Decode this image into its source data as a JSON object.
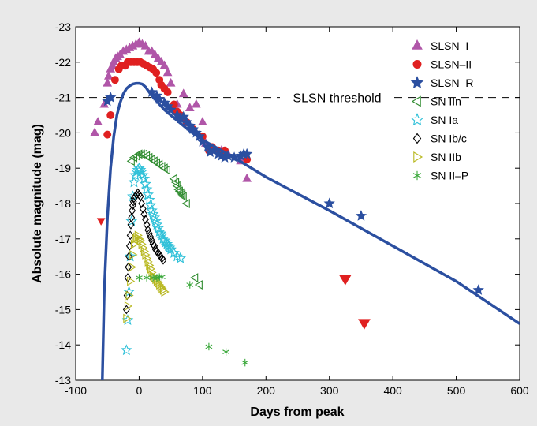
{
  "chart_data": {
    "type": "scatter",
    "xlabel": "Days from peak",
    "ylabel": "Absolute magnitude (mag)",
    "xlim": [
      -100,
      600
    ],
    "ylim": [
      -23,
      -13
    ],
    "y_reversed": true,
    "xticks": [
      -100,
      0,
      100,
      200,
      300,
      400,
      500,
      600
    ],
    "yticks": [
      -23,
      -22,
      -21,
      -20,
      -19,
      -18,
      -17,
      -16,
      -15,
      -14,
      -13
    ],
    "legend_position": "top-right",
    "threshold": {
      "label": "SLSN threshold",
      "y": -21
    },
    "model_curve": {
      "color": "#2b4fa0",
      "points": [
        [
          -58,
          -13
        ],
        [
          -55,
          -15.5
        ],
        [
          -50,
          -17.6
        ],
        [
          -45,
          -19.0
        ],
        [
          -40,
          -19.9
        ],
        [
          -35,
          -20.5
        ],
        [
          -30,
          -20.85
        ],
        [
          -25,
          -21.1
        ],
        [
          -20,
          -21.25
        ],
        [
          -15,
          -21.33
        ],
        [
          -10,
          -21.38
        ],
        [
          -5,
          -21.4
        ],
        [
          0,
          -21.4
        ],
        [
          5,
          -21.38
        ],
        [
          10,
          -21.3
        ],
        [
          20,
          -21.05
        ],
        [
          30,
          -20.85
        ],
        [
          40,
          -20.65
        ],
        [
          60,
          -20.35
        ],
        [
          80,
          -20.05
        ],
        [
          100,
          -19.8
        ],
        [
          130,
          -19.5
        ],
        [
          150,
          -19.3
        ],
        [
          200,
          -18.75
        ],
        [
          300,
          -17.8
        ],
        [
          400,
          -16.8
        ],
        [
          500,
          -15.8
        ],
        [
          600,
          -14.6
        ]
      ]
    },
    "series": [
      {
        "name": "SLSN–I",
        "marker": "triangle-up",
        "color": "#b056a8",
        "filled": true,
        "points": [
          [
            -70,
            -20
          ],
          [
            -65,
            -20.3
          ],
          [
            -55,
            -20.8
          ],
          [
            -50,
            -21.4
          ],
          [
            -48,
            -21.6
          ],
          [
            -45,
            -21.8
          ],
          [
            -42,
            -21.9
          ],
          [
            -40,
            -22.0
          ],
          [
            -37,
            -22.1
          ],
          [
            -34,
            -22.15
          ],
          [
            -30,
            -22.2
          ],
          [
            -25,
            -22.3
          ],
          [
            -20,
            -22.35
          ],
          [
            -15,
            -22.4
          ],
          [
            -10,
            -22.45
          ],
          [
            -5,
            -22.5
          ],
          [
            0,
            -22.55
          ],
          [
            5,
            -22.5
          ],
          [
            10,
            -22.45
          ],
          [
            15,
            -22.3
          ],
          [
            20,
            -22.3
          ],
          [
            25,
            -22.2
          ],
          [
            30,
            -22.1
          ],
          [
            35,
            -22.0
          ],
          [
            40,
            -21.9
          ],
          [
            45,
            -21.7
          ],
          [
            50,
            -21.4
          ],
          [
            60,
            -20.8
          ],
          [
            70,
            -21.1
          ],
          [
            80,
            -20.7
          ],
          [
            90,
            -20.8
          ],
          [
            100,
            -20.3
          ],
          [
            105,
            -19.7
          ],
          [
            115,
            -19.5
          ],
          [
            130,
            -19.5
          ],
          [
            140,
            -19.4
          ],
          [
            160,
            -19.2
          ],
          [
            170,
            -18.7
          ]
        ]
      },
      {
        "name": "SLSN–II",
        "marker": "circle",
        "color": "#e02020",
        "filled": true,
        "points": [
          [
            -50,
            -19.95
          ],
          [
            -45,
            -20.5
          ],
          [
            -38,
            -21.5
          ],
          [
            -32,
            -21.8
          ],
          [
            -28,
            -21.9
          ],
          [
            -22,
            -21.9
          ],
          [
            -18,
            -22.0
          ],
          [
            -13,
            -22.0
          ],
          [
            -8,
            -22.0
          ],
          [
            -3,
            -22.0
          ],
          [
            2,
            -22.0
          ],
          [
            7,
            -21.95
          ],
          [
            12,
            -21.9
          ],
          [
            17,
            -21.85
          ],
          [
            22,
            -21.8
          ],
          [
            27,
            -21.7
          ],
          [
            32,
            -21.5
          ],
          [
            35,
            -21.35
          ],
          [
            40,
            -21.25
          ],
          [
            45,
            -21.15
          ],
          [
            55,
            -20.8
          ],
          [
            60,
            -20.6
          ],
          [
            65,
            -20.5
          ],
          [
            70,
            -20.4
          ],
          [
            75,
            -20.3
          ],
          [
            85,
            -20.1
          ],
          [
            100,
            -19.9
          ],
          [
            110,
            -19.5
          ],
          [
            115,
            -19.6
          ],
          [
            125,
            -19.5
          ],
          [
            135,
            -19.5
          ],
          [
            170,
            -19.25
          ]
        ],
        "extra_points": [
          [
            -60,
            -17.5,
            "triangle-down-small"
          ],
          [
            325,
            -15.85,
            "triangle-down"
          ],
          [
            355,
            -14.6,
            "triangle-down"
          ]
        ]
      },
      {
        "name": "SLSN–R",
        "marker": "star",
        "color": "#2b4fa0",
        "filled": true,
        "points": [
          [
            -50,
            -20.9
          ],
          [
            -45,
            -21.0
          ],
          [
            20,
            -21.15
          ],
          [
            28,
            -21.05
          ],
          [
            32,
            -20.95
          ],
          [
            40,
            -20.85
          ],
          [
            45,
            -20.75
          ],
          [
            50,
            -20.65
          ],
          [
            60,
            -20.5
          ],
          [
            65,
            -20.4
          ],
          [
            70,
            -20.45
          ],
          [
            75,
            -20.3
          ],
          [
            80,
            -20.2
          ],
          [
            85,
            -20.1
          ],
          [
            90,
            -20.0
          ],
          [
            95,
            -19.9
          ],
          [
            100,
            -19.75
          ],
          [
            108,
            -19.6
          ],
          [
            112,
            -19.45
          ],
          [
            118,
            -19.5
          ],
          [
            125,
            -19.4
          ],
          [
            130,
            -19.35
          ],
          [
            135,
            -19.3
          ],
          [
            140,
            -19.35
          ],
          [
            150,
            -19.3
          ],
          [
            160,
            -19.35
          ],
          [
            165,
            -19.4
          ],
          [
            170,
            -19.4
          ],
          [
            300,
            -18.0
          ],
          [
            350,
            -17.65
          ],
          [
            535,
            -15.55
          ]
        ]
      },
      {
        "name": "SN IIn",
        "marker": "triangle-left",
        "color": "#2e8b2e",
        "filled": false,
        "points": [
          [
            -12,
            -19.2
          ],
          [
            -8,
            -19.3
          ],
          [
            -4,
            -19.35
          ],
          [
            0,
            -19.4
          ],
          [
            4,
            -19.4
          ],
          [
            8,
            -19.4
          ],
          [
            12,
            -19.35
          ],
          [
            16,
            -19.3
          ],
          [
            20,
            -19.25
          ],
          [
            24,
            -19.2
          ],
          [
            28,
            -19.15
          ],
          [
            32,
            -19.1
          ],
          [
            36,
            -19.05
          ],
          [
            40,
            -19.0
          ],
          [
            44,
            -18.95
          ],
          [
            55,
            -18.7
          ],
          [
            58,
            -18.6
          ],
          [
            60,
            -18.5
          ],
          [
            62,
            -18.4
          ],
          [
            64,
            -18.35
          ],
          [
            66,
            -18.3
          ],
          [
            68,
            -18.25
          ],
          [
            70,
            -18.2
          ],
          [
            75,
            -18.0
          ],
          [
            88,
            -15.9
          ],
          [
            95,
            -15.7
          ]
        ]
      },
      {
        "name": "SN Ia",
        "marker": "star-outline",
        "color": "#2ec0d8",
        "filled": false,
        "points": [
          [
            -20,
            -13.85
          ],
          [
            -18,
            -14.7
          ],
          [
            -16,
            -15.5
          ],
          [
            -14,
            -16.5
          ],
          [
            -12,
            -17.5
          ],
          [
            -10,
            -18.2
          ],
          [
            -8,
            -18.6
          ],
          [
            -6,
            -18.8
          ],
          [
            -4,
            -18.9
          ],
          [
            -2,
            -18.95
          ],
          [
            0,
            -19.0
          ],
          [
            2,
            -18.95
          ],
          [
            4,
            -18.9
          ],
          [
            6,
            -18.8
          ],
          [
            8,
            -18.7
          ],
          [
            10,
            -18.55
          ],
          [
            12,
            -18.4
          ],
          [
            14,
            -18.25
          ],
          [
            16,
            -18.1
          ],
          [
            18,
            -17.95
          ],
          [
            20,
            -17.8
          ],
          [
            22,
            -17.7
          ],
          [
            24,
            -17.6
          ],
          [
            26,
            -17.5
          ],
          [
            28,
            -17.4
          ],
          [
            30,
            -17.3
          ],
          [
            32,
            -17.2
          ],
          [
            34,
            -17.15
          ],
          [
            36,
            -17.1
          ],
          [
            38,
            -17.0
          ],
          [
            40,
            -16.95
          ],
          [
            42,
            -16.9
          ],
          [
            44,
            -16.85
          ],
          [
            46,
            -16.8
          ],
          [
            48,
            -16.75
          ],
          [
            50,
            -16.7
          ],
          [
            55,
            -16.6
          ],
          [
            60,
            -16.5
          ],
          [
            65,
            -16.45
          ]
        ]
      },
      {
        "name": "SN Ib/c",
        "marker": "diamond",
        "color": "#000000",
        "filled": false,
        "points": [
          [
            -20,
            -15.0
          ],
          [
            -19,
            -15.4
          ],
          [
            -18,
            -15.9
          ],
          [
            -17,
            -16.2
          ],
          [
            -16,
            -16.5
          ],
          [
            -15,
            -16.8
          ],
          [
            -14,
            -17.1
          ],
          [
            -13,
            -17.4
          ],
          [
            -12,
            -17.6
          ],
          [
            -11,
            -17.8
          ],
          [
            -10,
            -17.95
          ],
          [
            -9,
            -18.05
          ],
          [
            -8,
            -18.15
          ],
          [
            -6,
            -18.2
          ],
          [
            -4,
            -18.25
          ],
          [
            -2,
            -18.3
          ],
          [
            0,
            -18.25
          ],
          [
            2,
            -18.2
          ],
          [
            4,
            -18.0
          ],
          [
            6,
            -17.85
          ],
          [
            8,
            -17.7
          ],
          [
            10,
            -17.55
          ],
          [
            12,
            -17.4
          ],
          [
            14,
            -17.25
          ],
          [
            16,
            -17.15
          ],
          [
            18,
            -17.05
          ],
          [
            20,
            -16.95
          ],
          [
            22,
            -16.85
          ],
          [
            24,
            -16.8
          ],
          [
            26,
            -16.7
          ],
          [
            28,
            -16.65
          ],
          [
            30,
            -16.6
          ],
          [
            32,
            -16.55
          ],
          [
            34,
            -16.5
          ],
          [
            36,
            -16.45
          ],
          [
            38,
            -16.4
          ]
        ]
      },
      {
        "name": "SN IIb",
        "marker": "triangle-right",
        "color": "#b8b820",
        "filled": false,
        "points": [
          [
            -20,
            -14.75
          ],
          [
            -18,
            -15.1
          ],
          [
            -16,
            -15.4
          ],
          [
            -14,
            -15.8
          ],
          [
            -12,
            -16.2
          ],
          [
            -10,
            -16.55
          ],
          [
            -8,
            -16.85
          ],
          [
            -6,
            -17.0
          ],
          [
            -4,
            -17.05
          ],
          [
            -2,
            -17.1
          ],
          [
            0,
            -17.0
          ],
          [
            2,
            -16.95
          ],
          [
            4,
            -16.85
          ],
          [
            6,
            -16.75
          ],
          [
            8,
            -16.65
          ],
          [
            10,
            -16.55
          ],
          [
            12,
            -16.45
          ],
          [
            14,
            -16.35
          ],
          [
            16,
            -16.25
          ],
          [
            18,
            -16.15
          ],
          [
            20,
            -16.05
          ],
          [
            22,
            -15.95
          ],
          [
            24,
            -15.9
          ],
          [
            26,
            -15.85
          ],
          [
            28,
            -15.8
          ],
          [
            30,
            -15.75
          ],
          [
            32,
            -15.7
          ],
          [
            34,
            -15.65
          ],
          [
            36,
            -15.6
          ],
          [
            38,
            -15.55
          ],
          [
            40,
            -15.5
          ]
        ]
      },
      {
        "name": "SN II–P",
        "marker": "asterisk",
        "color": "#3aa83a",
        "filled": false,
        "points": [
          [
            0,
            -15.9
          ],
          [
            12,
            -15.9
          ],
          [
            22,
            -15.9
          ],
          [
            28,
            -15.9
          ],
          [
            32,
            -15.92
          ],
          [
            36,
            -15.92
          ],
          [
            80,
            -15.7
          ],
          [
            110,
            -13.95
          ],
          [
            137,
            -13.8
          ],
          [
            167,
            -13.5
          ]
        ]
      }
    ]
  }
}
